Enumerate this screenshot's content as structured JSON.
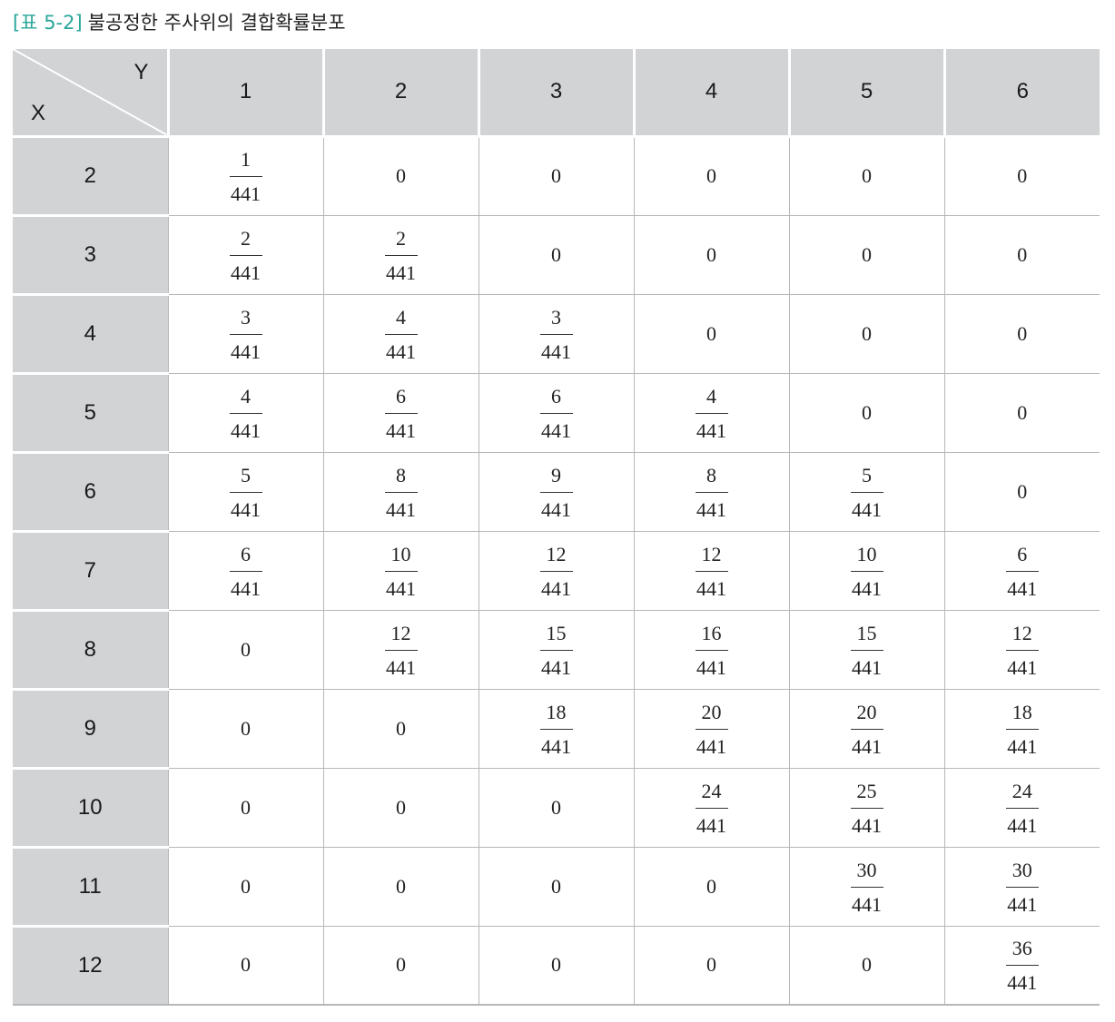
{
  "caption": {
    "tag": "[표 5-2]",
    "title": "불공정한 주사위의 결합확률분포"
  },
  "table": {
    "corner_y": "Y",
    "corner_x": "X",
    "col_headers": [
      "1",
      "2",
      "3",
      "4",
      "5",
      "6"
    ],
    "rows": [
      {
        "label": "2",
        "cells": [
          {
            "num": "1",
            "den": "441"
          },
          {
            "v": "0"
          },
          {
            "v": "0"
          },
          {
            "v": "0"
          },
          {
            "v": "0"
          },
          {
            "v": "0"
          }
        ]
      },
      {
        "label": "3",
        "cells": [
          {
            "num": "2",
            "den": "441"
          },
          {
            "num": "2",
            "den": "441"
          },
          {
            "v": "0"
          },
          {
            "v": "0"
          },
          {
            "v": "0"
          },
          {
            "v": "0"
          }
        ]
      },
      {
        "label": "4",
        "cells": [
          {
            "num": "3",
            "den": "441"
          },
          {
            "num": "4",
            "den": "441"
          },
          {
            "num": "3",
            "den": "441"
          },
          {
            "v": "0"
          },
          {
            "v": "0"
          },
          {
            "v": "0"
          }
        ]
      },
      {
        "label": "5",
        "cells": [
          {
            "num": "4",
            "den": "441"
          },
          {
            "num": "6",
            "den": "441"
          },
          {
            "num": "6",
            "den": "441"
          },
          {
            "num": "4",
            "den": "441"
          },
          {
            "v": "0"
          },
          {
            "v": "0"
          }
        ]
      },
      {
        "label": "6",
        "cells": [
          {
            "num": "5",
            "den": "441"
          },
          {
            "num": "8",
            "den": "441"
          },
          {
            "num": "9",
            "den": "441"
          },
          {
            "num": "8",
            "den": "441"
          },
          {
            "num": "5",
            "den": "441"
          },
          {
            "v": "0"
          }
        ]
      },
      {
        "label": "7",
        "cells": [
          {
            "num": "6",
            "den": "441"
          },
          {
            "num": "10",
            "den": "441"
          },
          {
            "num": "12",
            "den": "441"
          },
          {
            "num": "12",
            "den": "441"
          },
          {
            "num": "10",
            "den": "441"
          },
          {
            "num": "6",
            "den": "441"
          }
        ]
      },
      {
        "label": "8",
        "cells": [
          {
            "v": "0"
          },
          {
            "num": "12",
            "den": "441"
          },
          {
            "num": "15",
            "den": "441"
          },
          {
            "num": "16",
            "den": "441"
          },
          {
            "num": "15",
            "den": "441"
          },
          {
            "num": "12",
            "den": "441"
          }
        ]
      },
      {
        "label": "9",
        "cells": [
          {
            "v": "0"
          },
          {
            "v": "0"
          },
          {
            "num": "18",
            "den": "441"
          },
          {
            "num": "20",
            "den": "441"
          },
          {
            "num": "20",
            "den": "441"
          },
          {
            "num": "18",
            "den": "441"
          }
        ]
      },
      {
        "label": "10",
        "cells": [
          {
            "v": "0"
          },
          {
            "v": "0"
          },
          {
            "v": "0"
          },
          {
            "num": "24",
            "den": "441"
          },
          {
            "num": "25",
            "den": "441"
          },
          {
            "num": "24",
            "den": "441"
          }
        ]
      },
      {
        "label": "11",
        "cells": [
          {
            "v": "0"
          },
          {
            "v": "0"
          },
          {
            "v": "0"
          },
          {
            "v": "0"
          },
          {
            "num": "30",
            "den": "441"
          },
          {
            "num": "30",
            "den": "441"
          }
        ]
      },
      {
        "label": "12",
        "cells": [
          {
            "v": "0"
          },
          {
            "v": "0"
          },
          {
            "v": "0"
          },
          {
            "v": "0"
          },
          {
            "v": "0"
          },
          {
            "num": "36",
            "den": "441"
          }
        ]
      }
    ]
  },
  "colors": {
    "accent": "#2aa79a",
    "header_bg": "#d2d3d5",
    "grid_line": "#b7b7b7"
  }
}
